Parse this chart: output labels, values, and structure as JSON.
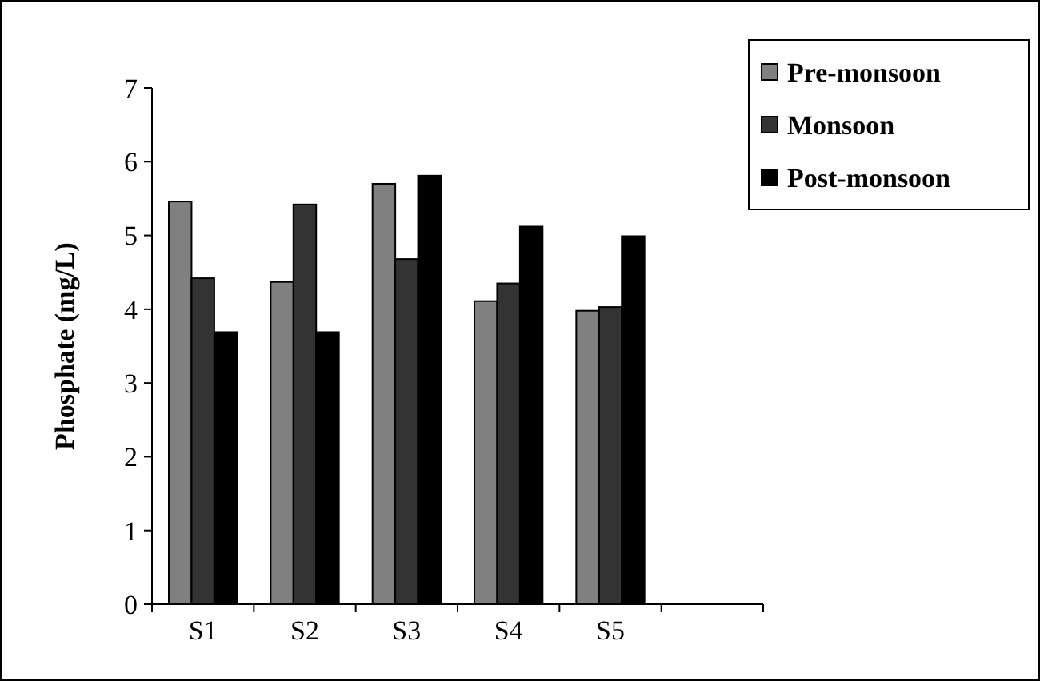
{
  "chart_data": {
    "type": "bar",
    "ylabel": "Phosphate (mg/L)",
    "categories": [
      "S1",
      "S2",
      "S3",
      "S4",
      "S5",
      null
    ],
    "series": [
      {
        "name": "Pre-monsoon",
        "color": "#808080",
        "values": [
          5.46,
          4.37,
          5.7,
          4.11,
          3.98,
          null
        ]
      },
      {
        "name": "Monsoon",
        "color": "#333333",
        "values": [
          4.42,
          5.42,
          4.68,
          4.35,
          4.03,
          null
        ]
      },
      {
        "name": "Post-monsoon",
        "color": "#000000",
        "values": [
          3.69,
          3.69,
          5.81,
          5.12,
          4.99,
          null
        ]
      }
    ],
    "ylim": [
      0,
      7
    ],
    "yticks": [
      0,
      1,
      2,
      3,
      4,
      5,
      6,
      7
    ],
    "grid": false,
    "legend": "top right"
  }
}
